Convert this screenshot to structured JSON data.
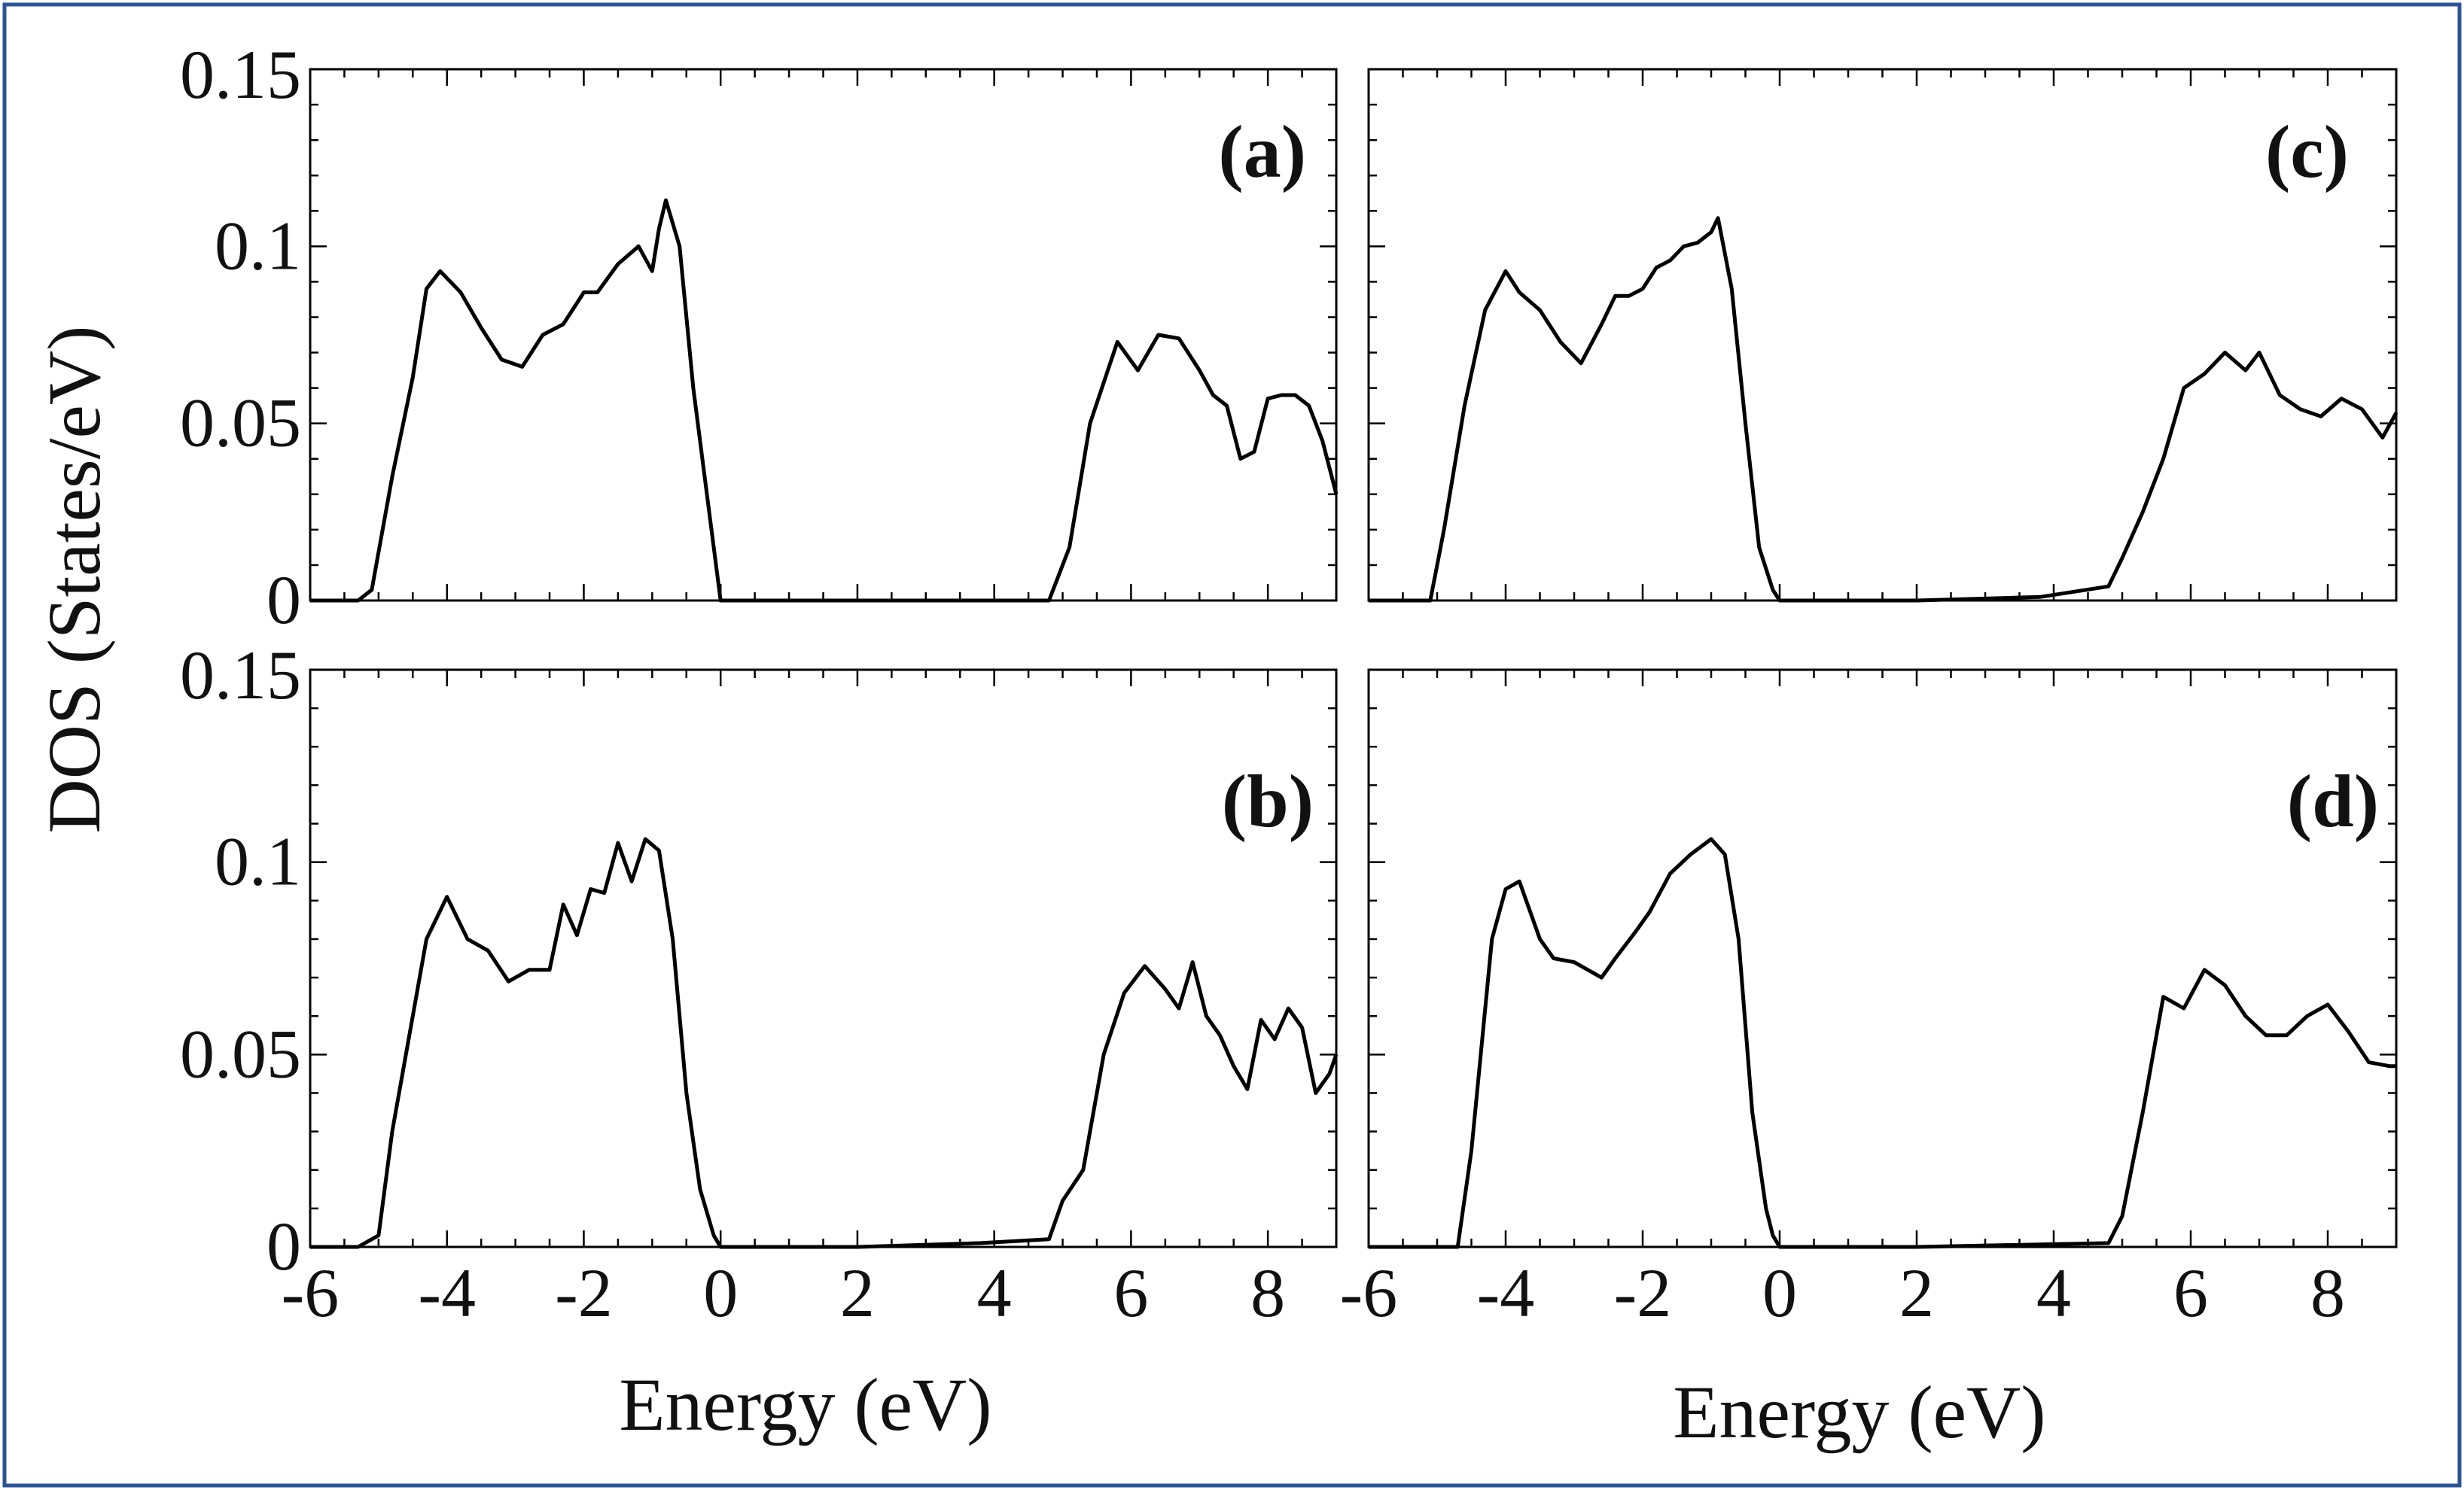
{
  "colors": {
    "line": "#000000",
    "frame_border": "#2c5597",
    "background": "#ffffff"
  },
  "chart_data": {
    "type": "line",
    "ylabel": "DOS (States/eV)",
    "xlabel": "Energy (eV)",
    "xlim": [
      -6,
      9
    ],
    "ylim": [
      0,
      0.15
    ],
    "xticks": [
      "-6",
      "-4",
      "-2",
      "0",
      "2",
      "4",
      "6",
      "8"
    ],
    "yticks": [
      "0",
      "0.05",
      "0.1",
      "0.15"
    ],
    "grid": false,
    "panels": [
      {
        "label": "(a)",
        "series": [
          {
            "x": [
              -6,
              -5.3,
              -5.1,
              -4.8,
              -4.5,
              -4.3,
              -4.1,
              -3.8,
              -3.5,
              -3.2,
              -2.9,
              -2.6,
              -2.3,
              -2.0,
              -1.8,
              -1.5,
              -1.2,
              -1.0,
              -0.9,
              -0.8,
              -0.6,
              -0.4,
              -0.2,
              0,
              2,
              4.8,
              5.1,
              5.4,
              5.8,
              6.1,
              6.4,
              6.7,
              7.0,
              7.2,
              7.4,
              7.6,
              7.8,
              8.0,
              8.2,
              8.4,
              8.6,
              8.8,
              9.0
            ],
            "y": [
              0,
              0,
              0.003,
              0.035,
              0.063,
              0.088,
              0.093,
              0.087,
              0.077,
              0.068,
              0.066,
              0.075,
              0.078,
              0.087,
              0.087,
              0.095,
              0.1,
              0.093,
              0.105,
              0.113,
              0.1,
              0.06,
              0.03,
              0,
              0,
              0,
              0.015,
              0.05,
              0.073,
              0.065,
              0.075,
              0.074,
              0.065,
              0.058,
              0.055,
              0.04,
              0.042,
              0.057,
              0.058,
              0.058,
              0.055,
              0.045,
              0.03
            ]
          }
        ]
      },
      {
        "label": "(b)",
        "series": [
          {
            "x": [
              -6,
              -5.3,
              -5.0,
              -4.8,
              -4.6,
              -4.3,
              -4.0,
              -3.7,
              -3.4,
              -3.1,
              -2.8,
              -2.5,
              -2.3,
              -2.1,
              -1.9,
              -1.7,
              -1.5,
              -1.3,
              -1.1,
              -0.9,
              -0.7,
              -0.5,
              -0.3,
              -0.1,
              0,
              2,
              3.8,
              4.8,
              5.0,
              5.3,
              5.6,
              5.9,
              6.2,
              6.5,
              6.7,
              6.9,
              7.1,
              7.3,
              7.5,
              7.7,
              7.9,
              8.1,
              8.3,
              8.5,
              8.7,
              8.9,
              9.0
            ],
            "y": [
              0,
              0,
              0.003,
              0.03,
              0.05,
              0.08,
              0.091,
              0.08,
              0.077,
              0.069,
              0.072,
              0.072,
              0.089,
              0.081,
              0.093,
              0.092,
              0.105,
              0.095,
              0.106,
              0.103,
              0.08,
              0.04,
              0.015,
              0.003,
              0,
              0,
              0.001,
              0.002,
              0.012,
              0.02,
              0.05,
              0.066,
              0.073,
              0.067,
              0.062,
              0.074,
              0.06,
              0.055,
              0.047,
              0.041,
              0.059,
              0.054,
              0.062,
              0.057,
              0.04,
              0.045,
              0.05
            ]
          }
        ]
      },
      {
        "label": "(c)",
        "series": [
          {
            "x": [
              -6,
              -5.1,
              -4.9,
              -4.6,
              -4.3,
              -4.0,
              -3.8,
              -3.5,
              -3.2,
              -2.9,
              -2.6,
              -2.4,
              -2.2,
              -2.0,
              -1.8,
              -1.6,
              -1.4,
              -1.2,
              -1.0,
              -0.9,
              -0.7,
              -0.5,
              -0.3,
              -0.1,
              0,
              2,
              3.8,
              4.8,
              5.0,
              5.3,
              5.6,
              5.9,
              6.2,
              6.5,
              6.8,
              7.0,
              7.3,
              7.6,
              7.9,
              8.2,
              8.5,
              8.8,
              9.0
            ],
            "y": [
              0,
              0,
              0.02,
              0.055,
              0.082,
              0.093,
              0.087,
              0.082,
              0.073,
              0.067,
              0.078,
              0.086,
              0.086,
              0.088,
              0.094,
              0.096,
              0.1,
              0.101,
              0.104,
              0.108,
              0.088,
              0.05,
              0.015,
              0.003,
              0,
              0,
              0.001,
              0.004,
              0.012,
              0.025,
              0.04,
              0.06,
              0.064,
              0.07,
              0.065,
              0.07,
              0.058,
              0.054,
              0.052,
              0.057,
              0.054,
              0.046,
              0.053
            ]
          }
        ]
      },
      {
        "label": "(d)",
        "series": [
          {
            "x": [
              -6,
              -4.7,
              -4.5,
              -4.2,
              -4.0,
              -3.8,
              -3.5,
              -3.3,
              -3.0,
              -2.8,
              -2.6,
              -2.4,
              -2.1,
              -1.9,
              -1.6,
              -1.3,
              -1.0,
              -0.8,
              -0.6,
              -0.4,
              -0.2,
              -0.1,
              0,
              2,
              4.8,
              5.0,
              5.3,
              5.6,
              5.9,
              6.2,
              6.5,
              6.8,
              7.1,
              7.4,
              7.7,
              8.0,
              8.3,
              8.6,
              8.9,
              9.0
            ],
            "y": [
              0,
              0,
              0.025,
              0.08,
              0.093,
              0.095,
              0.08,
              0.075,
              0.074,
              0.072,
              0.07,
              0.075,
              0.082,
              0.087,
              0.097,
              0.102,
              0.106,
              0.102,
              0.08,
              0.035,
              0.01,
              0.003,
              0,
              0,
              0.001,
              0.008,
              0.035,
              0.065,
              0.062,
              0.072,
              0.068,
              0.06,
              0.055,
              0.055,
              0.06,
              0.063,
              0.056,
              0.048,
              0.047,
              0.047
            ]
          }
        ]
      }
    ]
  }
}
